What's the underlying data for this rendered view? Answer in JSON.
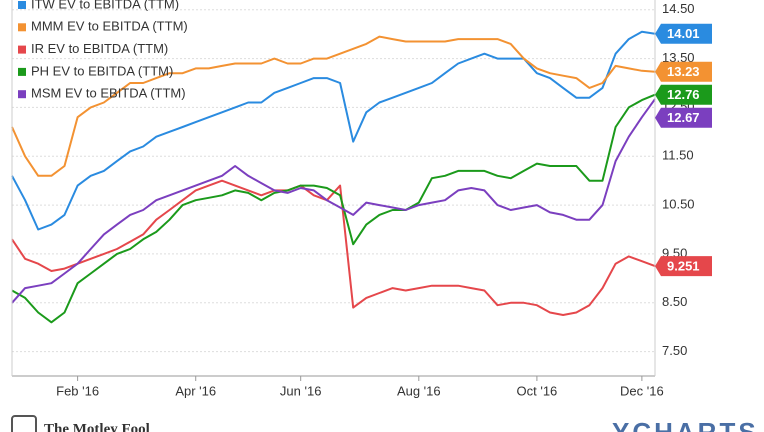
{
  "chart_data": {
    "type": "line",
    "categories": [
      null,
      null,
      null,
      null,
      null,
      "Feb '16",
      null,
      null,
      null,
      null,
      null,
      null,
      null,
      null,
      "Apr '16",
      null,
      null,
      null,
      null,
      null,
      null,
      null,
      "Jun '16",
      null,
      null,
      null,
      null,
      null,
      null,
      null,
      null,
      "Aug '16",
      null,
      null,
      null,
      null,
      null,
      null,
      null,
      null,
      "Oct '16",
      null,
      null,
      null,
      null,
      null,
      null,
      null,
      "Dec '16",
      null
    ],
    "series": [
      {
        "name": "ITW EV to EBITDA (TTM)",
        "color": "#2a8be0",
        "values": [
          11.1,
          10.6,
          10.0,
          10.1,
          10.3,
          10.9,
          11.1,
          11.2,
          11.4,
          11.6,
          11.7,
          11.9,
          12.0,
          12.1,
          12.2,
          12.3,
          12.4,
          12.5,
          12.6,
          12.6,
          12.8,
          12.9,
          13.0,
          13.1,
          13.1,
          13.0,
          11.8,
          12.4,
          12.6,
          12.7,
          12.8,
          12.9,
          13.0,
          13.2,
          13.4,
          13.5,
          13.6,
          13.5,
          13.5,
          13.5,
          13.2,
          13.1,
          12.9,
          12.7,
          12.7,
          12.9,
          13.6,
          13.9,
          14.05,
          14.01
        ]
      },
      {
        "name": "MMM EV to EBITDA (TTM)",
        "color": "#f39232",
        "values": [
          12.1,
          11.5,
          11.1,
          11.1,
          11.3,
          12.3,
          12.5,
          12.6,
          12.8,
          13.0,
          13.0,
          13.1,
          13.2,
          13.2,
          13.3,
          13.3,
          13.35,
          13.4,
          13.4,
          13.4,
          13.5,
          13.4,
          13.4,
          13.5,
          13.5,
          13.6,
          13.7,
          13.8,
          13.95,
          13.9,
          13.85,
          13.85,
          13.85,
          13.85,
          13.9,
          13.9,
          13.9,
          13.9,
          13.8,
          13.5,
          13.3,
          13.2,
          13.15,
          13.1,
          12.9,
          13.0,
          13.35,
          13.3,
          13.25,
          13.23
        ]
      },
      {
        "name": "IR EV to EBITDA (TTM)",
        "color": "#e5474b",
        "values": [
          9.8,
          9.4,
          9.3,
          9.15,
          9.2,
          9.3,
          9.4,
          9.5,
          9.6,
          9.75,
          9.9,
          10.2,
          10.4,
          10.6,
          10.8,
          10.9,
          11.0,
          10.9,
          10.8,
          10.7,
          10.8,
          10.8,
          10.9,
          10.7,
          10.6,
          10.9,
          8.4,
          8.6,
          8.7,
          8.8,
          8.75,
          8.8,
          8.85,
          8.85,
          8.85,
          8.8,
          8.75,
          8.45,
          8.5,
          8.5,
          8.45,
          8.3,
          8.25,
          8.3,
          8.45,
          8.8,
          9.3,
          9.45,
          9.35,
          9.251
        ]
      },
      {
        "name": "PH EV to EBITDA (TTM)",
        "color": "#1b9a1b",
        "values": [
          8.75,
          8.6,
          8.3,
          8.1,
          8.3,
          8.9,
          9.1,
          9.3,
          9.5,
          9.6,
          9.8,
          9.95,
          10.2,
          10.5,
          10.6,
          10.65,
          10.7,
          10.8,
          10.75,
          10.6,
          10.75,
          10.8,
          10.9,
          10.9,
          10.85,
          10.7,
          9.7,
          10.1,
          10.3,
          10.4,
          10.4,
          10.55,
          11.05,
          11.1,
          11.2,
          11.2,
          11.2,
          11.1,
          11.05,
          11.2,
          11.35,
          11.3,
          11.3,
          11.3,
          11.0,
          11.0,
          12.1,
          12.5,
          12.65,
          12.76
        ]
      },
      {
        "name": "MSM EV to EBITDA (TTM)",
        "color": "#7b3fbf",
        "values": [
          8.5,
          8.8,
          8.85,
          8.9,
          9.1,
          9.3,
          9.6,
          9.9,
          10.1,
          10.3,
          10.4,
          10.6,
          10.7,
          10.8,
          10.9,
          11.0,
          11.1,
          11.3,
          11.1,
          10.95,
          10.8,
          10.75,
          10.85,
          10.8,
          10.6,
          10.45,
          10.3,
          10.55,
          10.5,
          10.45,
          10.4,
          10.5,
          10.55,
          10.6,
          10.8,
          10.85,
          10.8,
          10.5,
          10.4,
          10.45,
          10.5,
          10.35,
          10.3,
          10.2,
          10.2,
          10.5,
          11.4,
          11.9,
          12.3,
          12.67
        ]
      }
    ],
    "ylim": [
      7.0,
      14.7
    ],
    "yticks": [
      {
        "value": 7.5,
        "label": "7.50"
      },
      {
        "value": 8.5,
        "label": "8.50"
      },
      {
        "value": 9.5,
        "label": "9.50"
      },
      {
        "value": 10.5,
        "label": "10.50"
      },
      {
        "value": 11.5,
        "label": "11.50"
      },
      {
        "value": 12.5,
        "label": "12.50"
      },
      {
        "value": 13.5,
        "label": "13.50"
      },
      {
        "value": 14.5,
        "label": "14.50"
      }
    ],
    "grid": true
  },
  "footer": {
    "brand": "The Motley Fool",
    "source": "YCHARTS"
  }
}
